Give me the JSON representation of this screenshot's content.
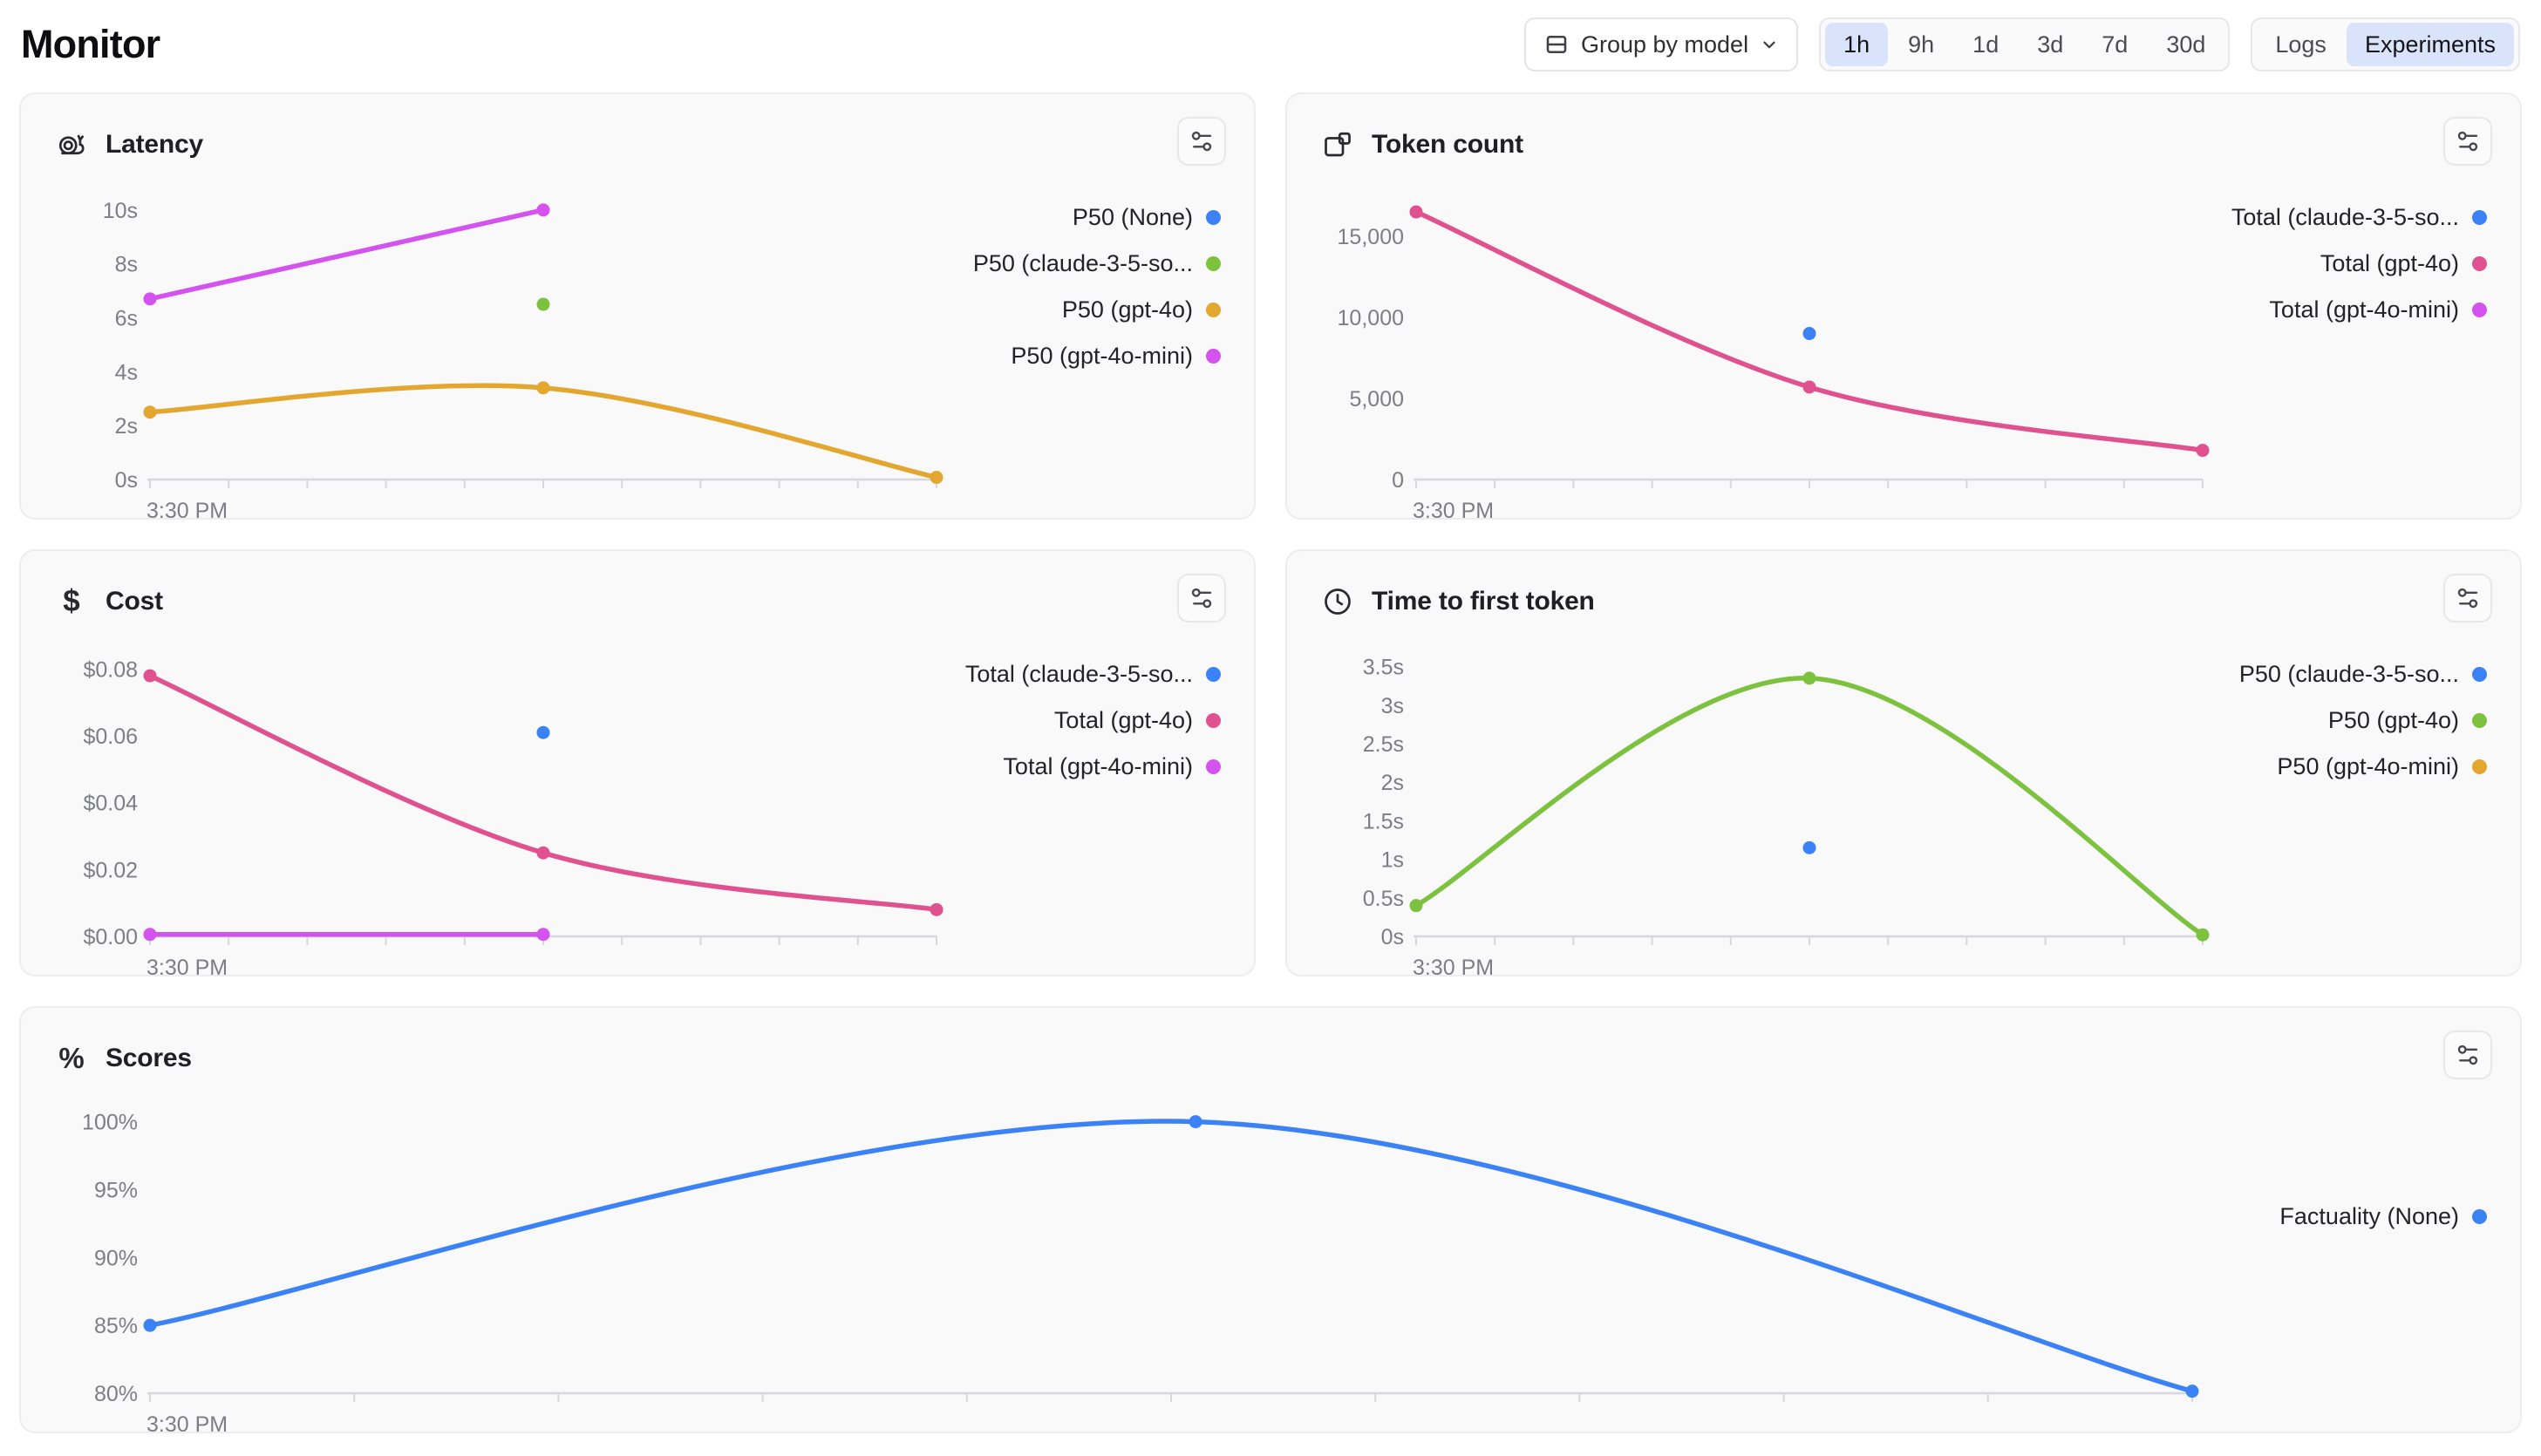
{
  "page": {
    "title": "Monitor"
  },
  "header": {
    "group_by": {
      "label": "Group by model"
    },
    "time_ranges": [
      {
        "label": "1h",
        "active": true
      },
      {
        "label": "9h",
        "active": false
      },
      {
        "label": "1d",
        "active": false
      },
      {
        "label": "3d",
        "active": false
      },
      {
        "label": "7d",
        "active": false
      },
      {
        "label": "30d",
        "active": false
      }
    ],
    "view_toggle": [
      {
        "label": "Logs",
        "active": false
      },
      {
        "label": "Experiments",
        "active": true
      }
    ]
  },
  "colors": {
    "blue": "#3b82f6",
    "green": "#7cc23f",
    "amber": "#e3a62f",
    "fuchsia": "#d452ee",
    "pink": "#e0518f",
    "axis_line": "#d7d7dc",
    "axis_text": "#7d7d85",
    "selected_pill": "#d9e4fb"
  },
  "chart_data": [
    {
      "type": "line",
      "title": "Latency",
      "icon": "snail-icon",
      "x_label": "3:30 PM",
      "x_tick_count": 10,
      "grid": false,
      "legend_position": "right",
      "ylim": [
        0,
        10.35
      ],
      "y_ticks": [
        {
          "v": 10,
          "label": "10s"
        },
        {
          "v": 8,
          "label": "8s"
        },
        {
          "v": 6,
          "label": "6s"
        },
        {
          "v": 4,
          "label": "4s"
        },
        {
          "v": 2,
          "label": "2s"
        },
        {
          "v": 0,
          "label": "0s"
        }
      ],
      "series": [
        {
          "name": "P50 (None)",
          "color": "blue",
          "points": []
        },
        {
          "name": "P50 (claude-3-5-so...",
          "color": "green",
          "points": [
            [
              0.5,
              6.5
            ]
          ]
        },
        {
          "name": "P50 (gpt-4o)",
          "color": "amber",
          "points": [
            [
              0,
              2.5
            ],
            [
              0.5,
              3.4
            ],
            [
              1,
              0.08
            ]
          ]
        },
        {
          "name": "P50 (gpt-4o-mini)",
          "color": "fuchsia",
          "points": [
            [
              0,
              6.7
            ],
            [
              0.5,
              10
            ]
          ]
        }
      ]
    },
    {
      "type": "line",
      "title": "Token count",
      "icon": "token-blocks-icon",
      "x_label": "3:30 PM",
      "x_tick_count": 10,
      "grid": false,
      "legend_position": "right",
      "ylim": [
        0,
        17200
      ],
      "y_ticks": [
        {
          "v": 15000,
          "label": "15,000"
        },
        {
          "v": 10000,
          "label": "10,000"
        },
        {
          "v": 5000,
          "label": "5,000"
        },
        {
          "v": 0,
          "label": "0"
        }
      ],
      "series": [
        {
          "name": "Total (claude-3-5-so...",
          "color": "blue",
          "points": [
            [
              0.5,
              9000
            ]
          ]
        },
        {
          "name": "Total (gpt-4o)",
          "color": "pink",
          "points": [
            [
              0,
              16500
            ],
            [
              0.5,
              5700
            ],
            [
              1,
              1800
            ]
          ]
        },
        {
          "name": "Total (gpt-4o-mini)",
          "color": "fuchsia",
          "points": []
        }
      ]
    },
    {
      "type": "line",
      "title": "Cost",
      "icon": "dollar-icon",
      "x_label": "3:30 PM",
      "x_tick_count": 10,
      "grid": false,
      "legend_position": "right",
      "ylim": [
        0,
        0.0835
      ],
      "y_ticks": [
        {
          "v": 0.08,
          "label": "$0.08"
        },
        {
          "v": 0.06,
          "label": "$0.06"
        },
        {
          "v": 0.04,
          "label": "$0.04"
        },
        {
          "v": 0.02,
          "label": "$0.02"
        },
        {
          "v": 0,
          "label": "$0.00"
        }
      ],
      "series": [
        {
          "name": "Total (claude-3-5-so...",
          "color": "blue",
          "points": [
            [
              0.5,
              0.061
            ]
          ]
        },
        {
          "name": "Total (gpt-4o)",
          "color": "pink",
          "points": [
            [
              0,
              0.078
            ],
            [
              0.5,
              0.025
            ],
            [
              1,
              0.008
            ]
          ]
        },
        {
          "name": "Total (gpt-4o-mini)",
          "color": "fuchsia",
          "points": [
            [
              0,
              0.0006
            ],
            [
              0.5,
              0.0006
            ]
          ]
        }
      ]
    },
    {
      "type": "line",
      "title": "Time to first token",
      "icon": "clock-icon",
      "x_label": "3:30 PM",
      "x_tick_count": 10,
      "grid": false,
      "legend_position": "right",
      "ylim": [
        0,
        3.62
      ],
      "y_ticks": [
        {
          "v": 3.5,
          "label": "3.5s"
        },
        {
          "v": 3,
          "label": "3s"
        },
        {
          "v": 2.5,
          "label": "2.5s"
        },
        {
          "v": 2,
          "label": "2s"
        },
        {
          "v": 1.5,
          "label": "1.5s"
        },
        {
          "v": 1,
          "label": "1s"
        },
        {
          "v": 0.5,
          "label": "0.5s"
        },
        {
          "v": 0,
          "label": "0s"
        }
      ],
      "series": [
        {
          "name": "P50 (claude-3-5-so...",
          "color": "blue",
          "points": [
            [
              0.5,
              1.15
            ]
          ]
        },
        {
          "name": "P50 (gpt-4o)",
          "color": "green",
          "points": [
            [
              0,
              0.4
            ],
            [
              0.5,
              3.35
            ],
            [
              1,
              0.02
            ]
          ]
        },
        {
          "name": "P50 (gpt-4o-mini)",
          "color": "amber",
          "points": []
        }
      ]
    },
    {
      "type": "line",
      "title": "Scores",
      "icon": "percent-icon",
      "x_label": "3:30 PM",
      "x_tick_count": 10,
      "grid": false,
      "legend_position": "right",
      "ylim": [
        80,
        100.55
      ],
      "y_ticks": [
        {
          "v": 100,
          "label": "100%"
        },
        {
          "v": 95,
          "label": "95%"
        },
        {
          "v": 90,
          "label": "90%"
        },
        {
          "v": 85,
          "label": "85%"
        },
        {
          "v": 80,
          "label": "80%"
        }
      ],
      "series": [
        {
          "name": "Factuality (None)",
          "color": "blue",
          "points": [
            [
              0,
              85
            ],
            [
              0.512,
              100
            ],
            [
              1,
              80.15
            ]
          ]
        }
      ]
    }
  ]
}
